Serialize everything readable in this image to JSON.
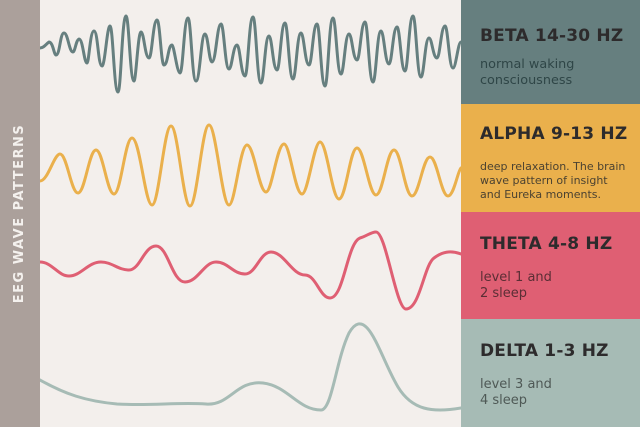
{
  "side": {
    "title": "EEG WAVE PATTERNS"
  },
  "legend": [
    {
      "name": "beta",
      "title": "BETA 14-30 HZ",
      "description": "normal waking\nconsciousness",
      "color": "#667f7f"
    },
    {
      "name": "alpha",
      "title": "ALPHA 9-13 HZ",
      "description": "deep relaxation. The brain\nwave pattern of insight\nand Eureka moments.",
      "color": "#eab04c"
    },
    {
      "name": "theta",
      "title": "THETA 4-8 HZ",
      "description": "level 1 and\n2 sleep",
      "color": "#df5f73"
    },
    {
      "name": "delta",
      "title": "DELTA 1-3 HZ",
      "description": "level 3 and\n4 sleep",
      "color": "#a6bbb5"
    }
  ]
}
